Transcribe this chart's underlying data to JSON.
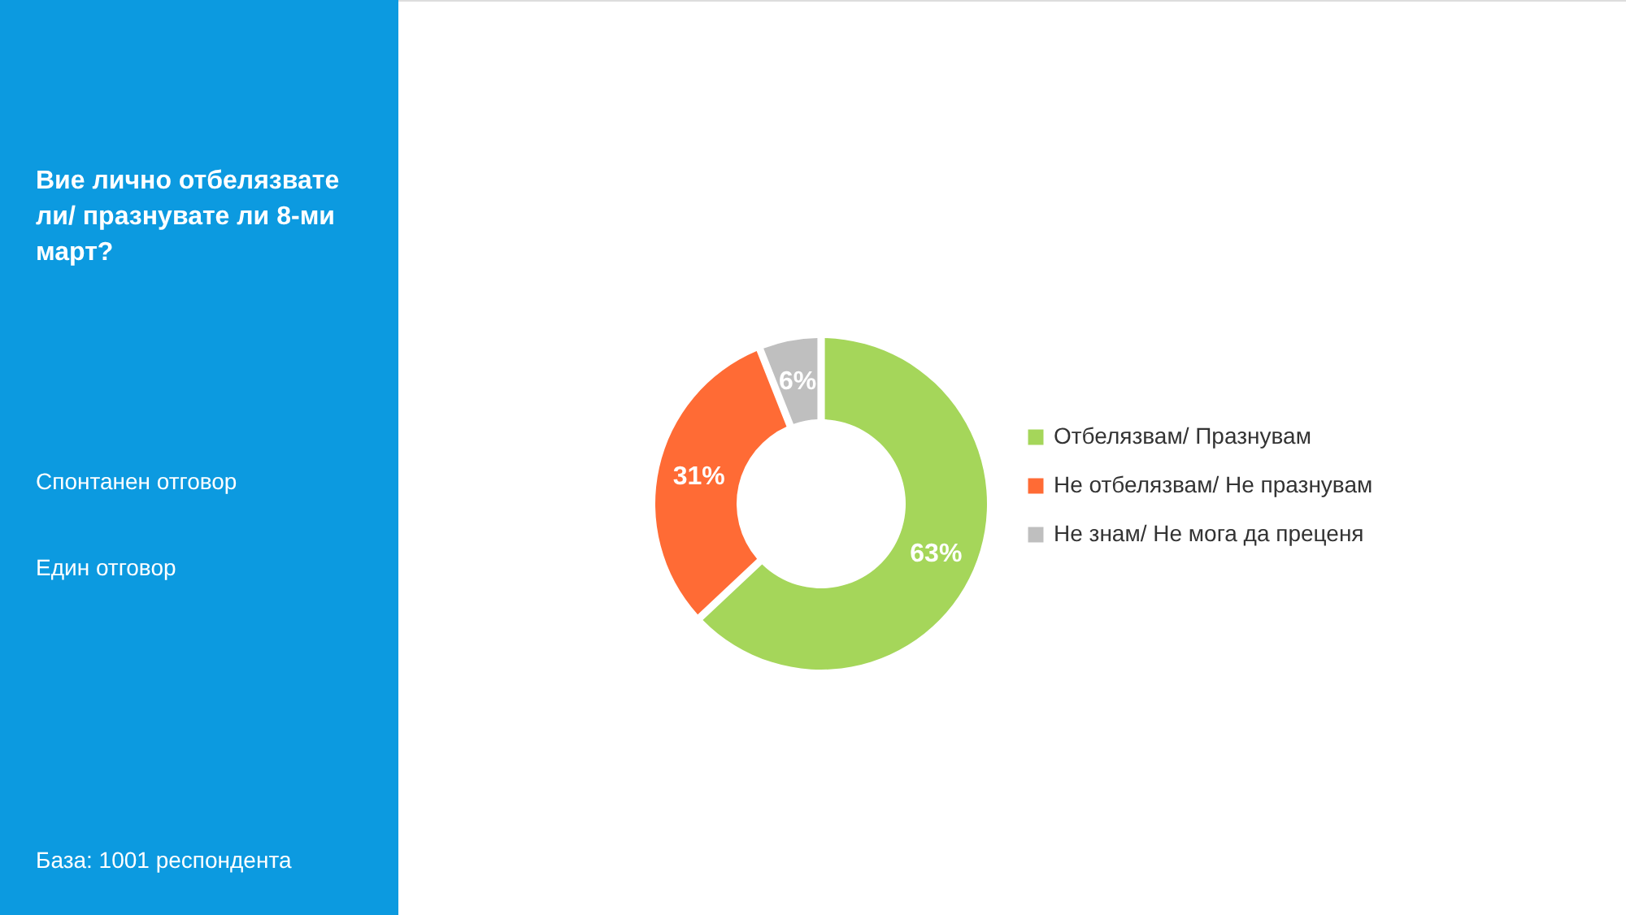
{
  "chart_data": {
    "type": "donut",
    "title": "Вие лично отбелязвате ли/ празнувате ли 8-ми март?",
    "categories": [
      "Отбелязвам/ Празнувам",
      "Не отбелязвам/ Не празнувам",
      "Не знам/ Не мога да преценя"
    ],
    "values": [
      63,
      31,
      6
    ],
    "colors": [
      "#a5d65a",
      "#ff6b35",
      "#bfbfbf"
    ],
    "value_labels": [
      "63%",
      "31%",
      "6%"
    ],
    "annotations": [
      "Спонтанен отговор",
      "Един отговор",
      "База:  1001 респондента"
    ],
    "legend": "right"
  }
}
